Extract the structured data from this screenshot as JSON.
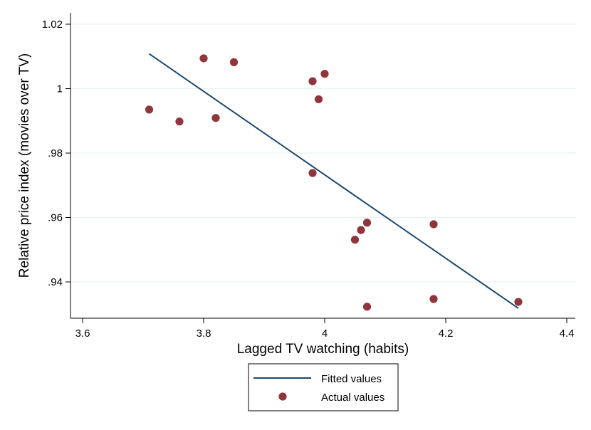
{
  "chart_data": {
    "type": "scatter",
    "title": "",
    "xlabel": "Lagged TV watching (habits)",
    "ylabel": "Relative price index (movies over TV)",
    "xlim": [
      3.6,
      4.4
    ],
    "ylim": [
      0.93,
      1.02
    ],
    "xticks": [
      3.6,
      3.8,
      4.0,
      4.2,
      4.4
    ],
    "xtick_labels": [
      "3.6",
      "3.8",
      "4",
      "4.2",
      "4.4"
    ],
    "yticks": [
      0.94,
      0.96,
      0.98,
      1.0,
      1.02
    ],
    "ytick_labels": [
      ".94",
      ".96",
      ".98",
      "1",
      "1.02"
    ],
    "grid": true,
    "legend_position": "bottom",
    "colors": {
      "fitted": "#1a476f",
      "actual": "#90353b",
      "grid": "#eaf2f3",
      "axis": "#000000"
    },
    "series": [
      {
        "name": "Fitted values",
        "kind": "line",
        "x": [
          3.71,
          4.32
        ],
        "y": [
          1.0108,
          0.9318
        ]
      },
      {
        "name": "Actual values",
        "kind": "scatter",
        "x": [
          3.71,
          3.76,
          3.8,
          3.82,
          3.85,
          3.98,
          3.98,
          3.99,
          4.0,
          4.05,
          4.06,
          4.07,
          4.07,
          4.18,
          4.18,
          4.32
        ],
        "y": [
          0.9935,
          0.9898,
          1.0094,
          0.9909,
          1.0082,
          1.0023,
          0.9738,
          0.9967,
          1.0046,
          0.9531,
          0.9561,
          0.9584,
          0.9323,
          0.9579,
          0.9347,
          0.9338
        ]
      }
    ]
  }
}
